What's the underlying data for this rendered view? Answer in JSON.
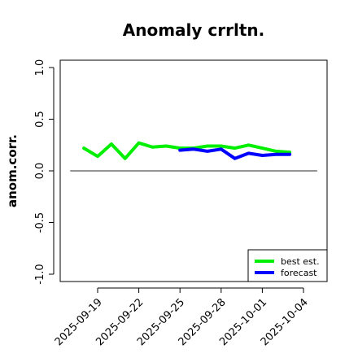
{
  "chart_data": {
    "type": "line",
    "title": "Anomaly crrltn.",
    "xlabel": "",
    "ylabel": "anom.corr.",
    "ylim": [
      -1.0,
      1.0
    ],
    "y_ticks": [
      "-1.0",
      "-0.5",
      "0.0",
      "0.5",
      "1.0"
    ],
    "x_ticks": [
      "2025-09-19",
      "2025-09-22",
      "2025-09-25",
      "2025-09-28",
      "2025-10-01",
      "2025-10-04"
    ],
    "highlight_tick": "2025-09-25",
    "highlight_color": "#228B22",
    "reference_line": {
      "y": 0.0,
      "x_start": "2025-09-17",
      "x_end": "2025-10-05",
      "color": "#555555"
    },
    "legend_position": "bottom-right",
    "grid": false,
    "series": [
      {
        "name": "best est.",
        "color": "#00ee00",
        "x": [
          "2025-09-18",
          "2025-09-19",
          "2025-09-20",
          "2025-09-21",
          "2025-09-22",
          "2025-09-23",
          "2025-09-24",
          "2025-09-25",
          "2025-09-26",
          "2025-09-27",
          "2025-09-28",
          "2025-09-29",
          "2025-09-30",
          "2025-10-01",
          "2025-10-02",
          "2025-10-03"
        ],
        "values": [
          0.22,
          0.14,
          0.26,
          0.12,
          0.27,
          0.23,
          0.24,
          0.22,
          0.22,
          0.24,
          0.24,
          0.22,
          0.25,
          0.22,
          0.19,
          0.18
        ]
      },
      {
        "name": "forecast",
        "color": "#0000ff",
        "x": [
          "2025-09-25",
          "2025-09-26",
          "2025-09-27",
          "2025-09-28",
          "2025-09-29",
          "2025-09-30",
          "2025-10-01",
          "2025-10-02",
          "2025-10-03"
        ],
        "values": [
          0.2,
          0.21,
          0.19,
          0.21,
          0.12,
          0.17,
          0.15,
          0.16,
          0.16
        ]
      }
    ]
  }
}
